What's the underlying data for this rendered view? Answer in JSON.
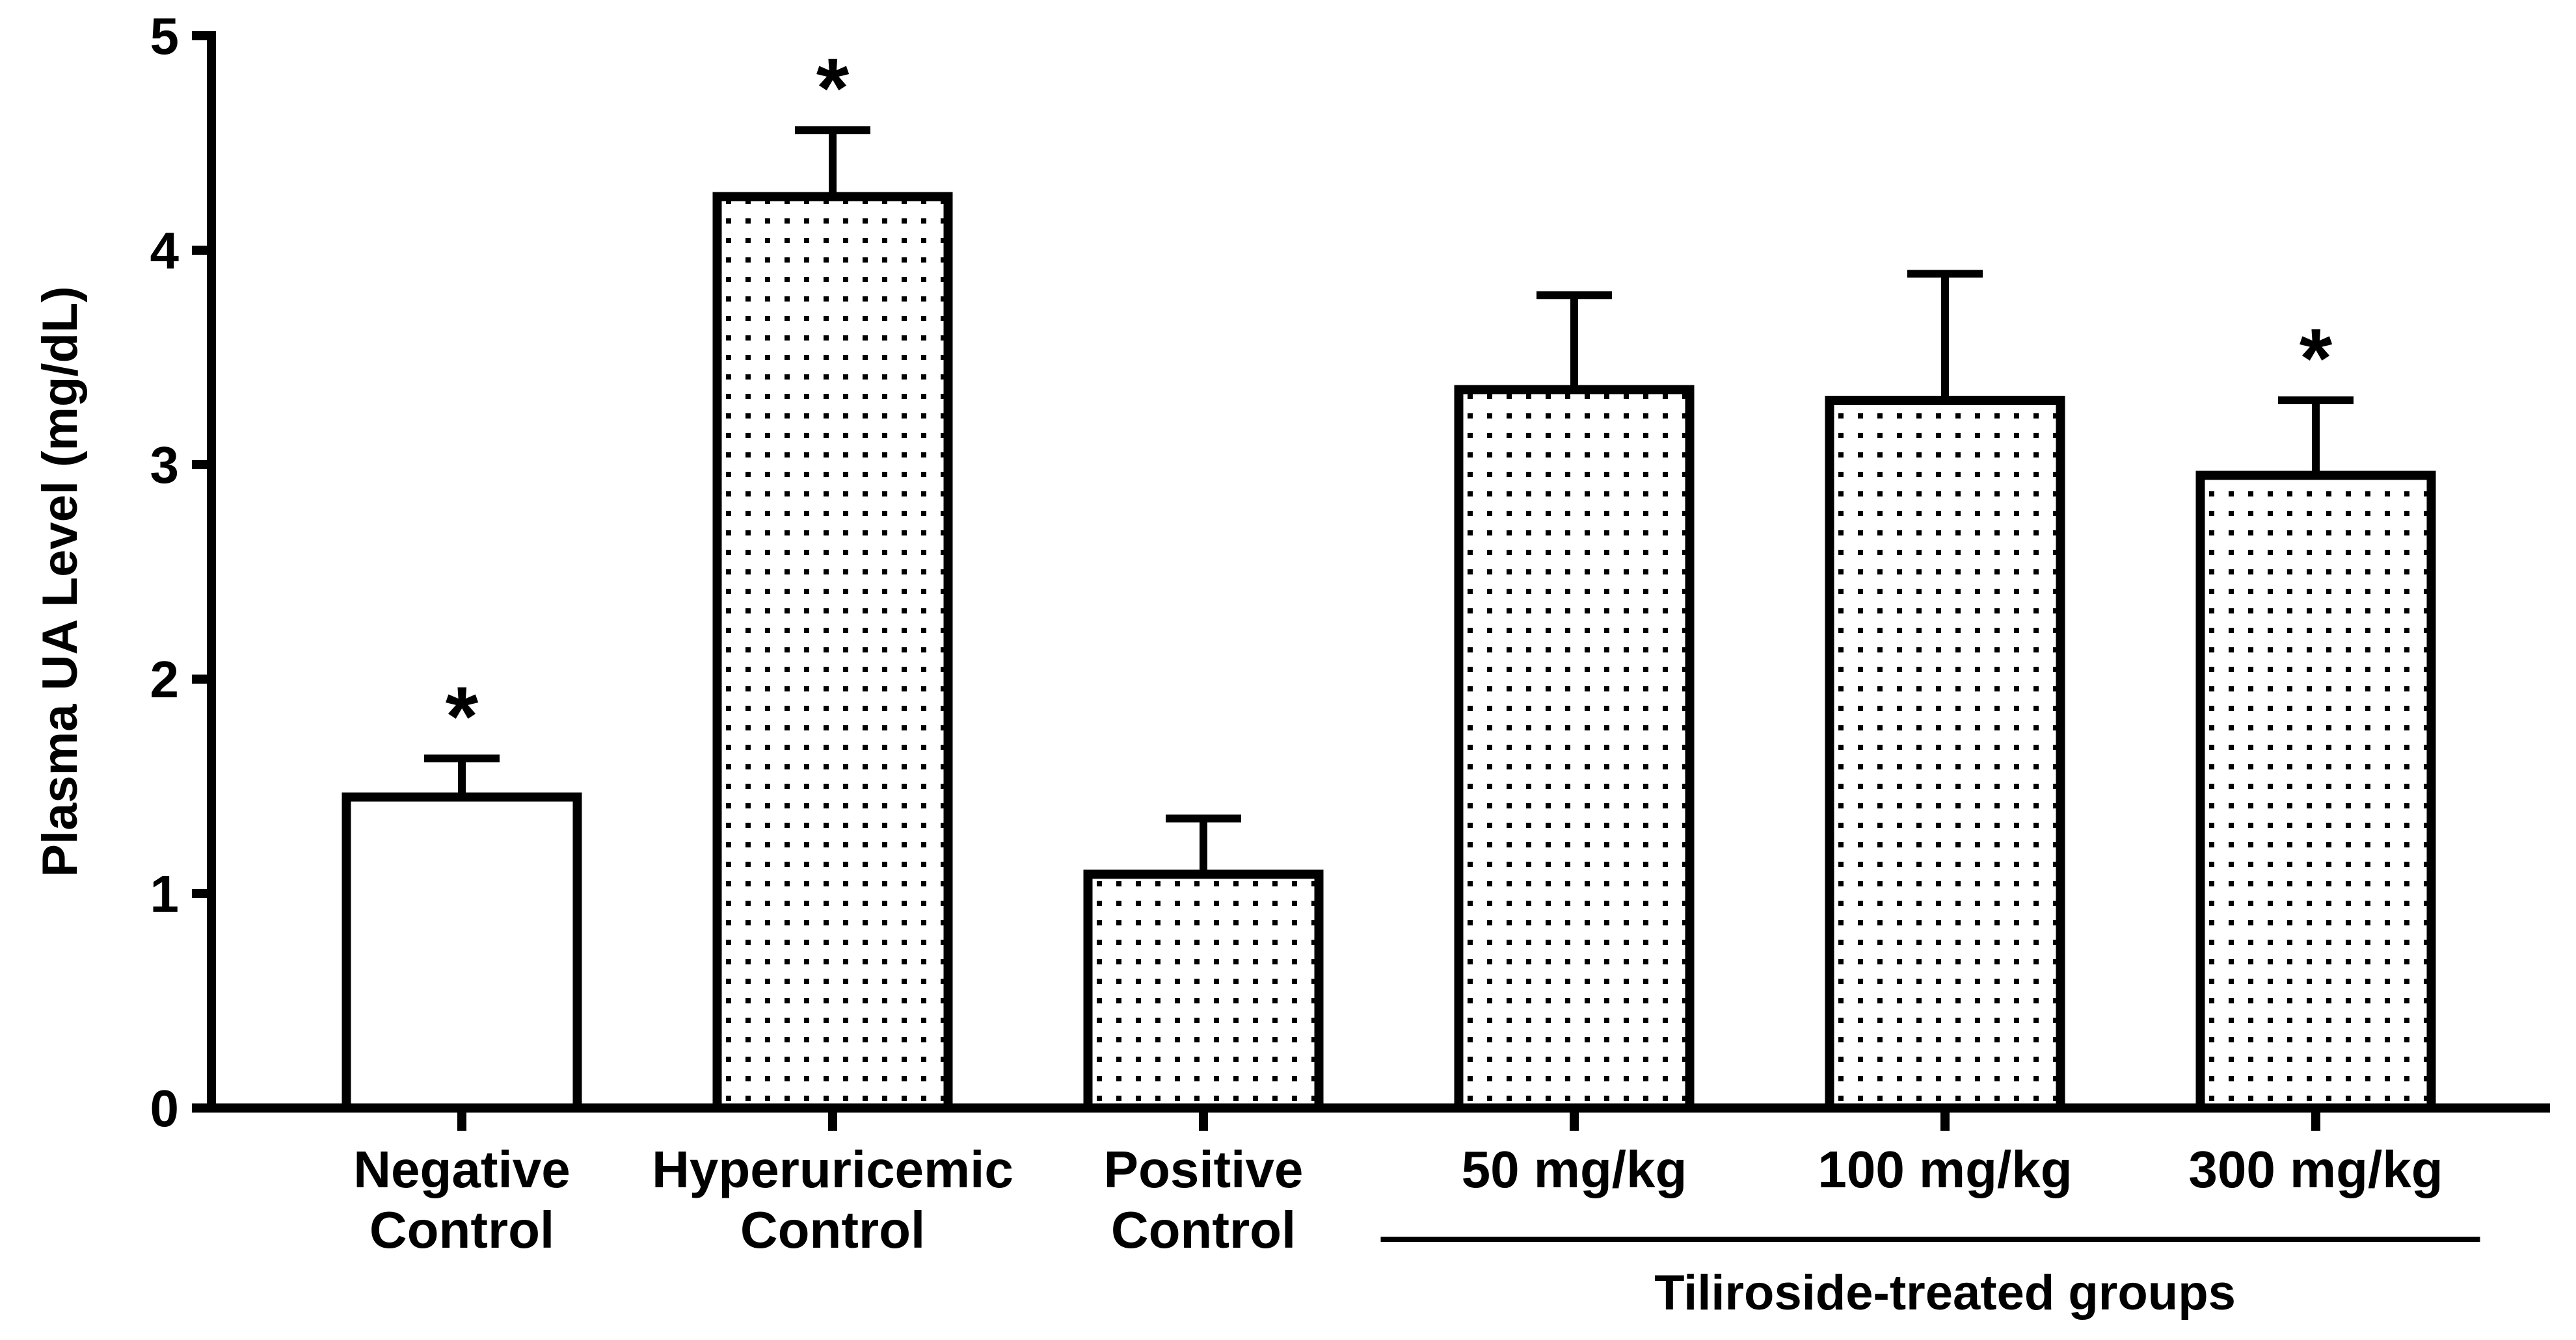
{
  "chart_data": {
    "type": "bar",
    "title": "",
    "xlabel": "",
    "ylabel": "Plasma UA Level (mg/dL)",
    "ylim": [
      0,
      5
    ],
    "yticks": [
      "0",
      "1",
      "2",
      "3",
      "4",
      "5"
    ],
    "grid": false,
    "categories": [
      {
        "line1": "Negative",
        "line2": "Control"
      },
      {
        "line1": "Hyperuricemic",
        "line2": "Control"
      },
      {
        "line1": "Positive",
        "line2": "Control"
      },
      {
        "line1": "50 mg/kg",
        "line2": ""
      },
      {
        "line1": "100 mg/kg",
        "line2": ""
      },
      {
        "line1": "300 mg/kg",
        "line2": ""
      }
    ],
    "values": [
      1.45,
      4.25,
      1.09,
      3.35,
      3.3,
      2.95
    ],
    "errors": [
      0.18,
      0.31,
      0.26,
      0.44,
      0.59,
      0.35
    ],
    "patterns": [
      "none",
      "dotted",
      "dotted",
      "dotted",
      "dotted",
      "dotted"
    ],
    "significance": [
      "*",
      "*",
      "",
      "",
      "",
      "*"
    ],
    "group_bracket": {
      "label": "Tiliroside-treated groups",
      "from_index": 3,
      "to_index": 5
    }
  }
}
